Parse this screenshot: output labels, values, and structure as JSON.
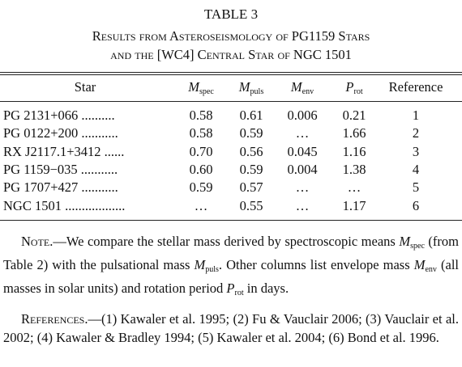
{
  "table_number": "TABLE 3",
  "title_lines": [
    "Results from Asteroseismology of PG1159 Stars",
    "and the [WC4] Central Star of NGC 1501"
  ],
  "table": {
    "header": [
      "Star",
      {
        "symbol": "M",
        "subscript": "spec"
      },
      {
        "symbol": "M",
        "subscript": "puls"
      },
      {
        "symbol": "M",
        "subscript": "env"
      },
      {
        "symbol": "P",
        "subscript": "rot"
      },
      "Reference"
    ],
    "rows": [
      [
        "PG 2131+066 ..........",
        "0.58",
        "0.61",
        "0.006",
        "0.21",
        "1"
      ],
      [
        "PG 0122+200 ...........",
        "0.58",
        "0.59",
        "…",
        "1.66",
        "2"
      ],
      [
        "RX J2117.1+3412 ......",
        "0.70",
        "0.56",
        "0.045",
        "1.16",
        "3"
      ],
      [
        "PG 1159−035 ...........",
        "0.60",
        "0.59",
        "0.004",
        "1.38",
        "4"
      ],
      [
        "PG 1707+427 ...........",
        "0.59",
        "0.57",
        "…",
        "…",
        "5"
      ],
      [
        "NGC 1501 ..................",
        "…",
        "0.55",
        "…",
        "1.17",
        "6"
      ]
    ]
  },
  "note": {
    "label": "Note.—",
    "parts": [
      "We compare the stellar mass derived by spectroscopic means ",
      {
        "symbol": "M",
        "subscript": "spec"
      },
      " (from Table 2) with the pulsational mass ",
      {
        "symbol": "M",
        "subscript": "puls"
      },
      ". Other columns list envelope mass ",
      {
        "symbol": "M",
        "subscript": "env"
      },
      " (all masses in solar units) and rotation period ",
      {
        "symbol": "P",
        "subscript": "rot"
      },
      " in days."
    ]
  },
  "references": {
    "label": "References.—",
    "text": "(1) Kawaler et al. 1995; (2) Fu & Vauclair 2006; (3) Vauclair et al. 2002; (4) Kawaler & Bradley 1994; (5) Kawaler et al. 2004; (6) Bond et al. 1996."
  }
}
